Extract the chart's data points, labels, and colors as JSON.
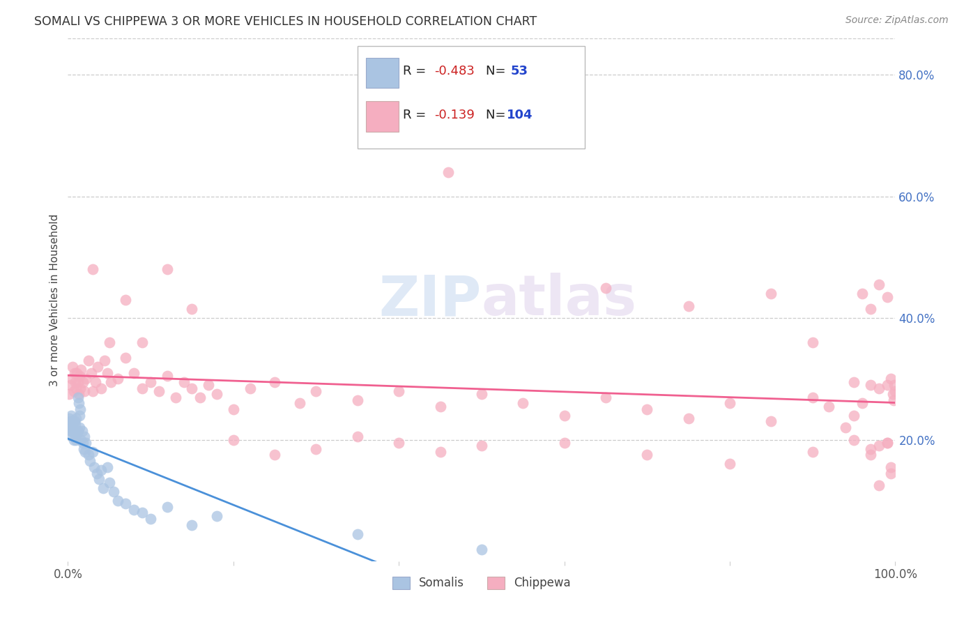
{
  "title": "SOMALI VS CHIPPEWA 3 OR MORE VEHICLES IN HOUSEHOLD CORRELATION CHART",
  "source": "Source: ZipAtlas.com",
  "ylabel": "3 or more Vehicles in Household",
  "right_ytick_labels": [
    "20.0%",
    "40.0%",
    "60.0%",
    "80.0%"
  ],
  "right_ytick_values": [
    0.2,
    0.4,
    0.6,
    0.8
  ],
  "xlim": [
    0.0,
    1.0
  ],
  "ylim": [
    0.0,
    0.86
  ],
  "legend_r1": "R = -0.483",
  "legend_n1": "53",
  "legend_r2": "R = -0.139",
  "legend_n2": "104",
  "somali_color": "#aac4e2",
  "chippewa_color": "#f5aec0",
  "somali_line_color": "#4a90d9",
  "chippewa_line_color": "#f06090",
  "legend_label1": "Somalis",
  "legend_label2": "Chippewa",
  "watermark": "ZIPatlas",
  "somali_x": [
    0.001,
    0.002,
    0.003,
    0.003,
    0.004,
    0.004,
    0.005,
    0.005,
    0.006,
    0.006,
    0.007,
    0.007,
    0.008,
    0.008,
    0.009,
    0.009,
    0.01,
    0.01,
    0.011,
    0.012,
    0.012,
    0.013,
    0.014,
    0.014,
    0.015,
    0.016,
    0.017,
    0.018,
    0.019,
    0.02,
    0.021,
    0.022,
    0.025,
    0.027,
    0.03,
    0.032,
    0.035,
    0.038,
    0.04,
    0.043,
    0.048,
    0.05,
    0.055,
    0.06,
    0.07,
    0.08,
    0.09,
    0.1,
    0.12,
    0.15,
    0.18,
    0.35,
    0.5
  ],
  "somali_y": [
    0.235,
    0.22,
    0.215,
    0.23,
    0.21,
    0.24,
    0.225,
    0.215,
    0.22,
    0.23,
    0.215,
    0.2,
    0.23,
    0.215,
    0.225,
    0.21,
    0.235,
    0.2,
    0.21,
    0.215,
    0.27,
    0.26,
    0.24,
    0.22,
    0.25,
    0.2,
    0.215,
    0.195,
    0.185,
    0.205,
    0.18,
    0.195,
    0.175,
    0.165,
    0.18,
    0.155,
    0.145,
    0.135,
    0.15,
    0.12,
    0.155,
    0.13,
    0.115,
    0.1,
    0.095,
    0.085,
    0.08,
    0.07,
    0.09,
    0.06,
    0.075,
    0.045,
    0.02
  ],
  "chippewa_x": [
    0.001,
    0.003,
    0.005,
    0.006,
    0.007,
    0.008,
    0.009,
    0.01,
    0.011,
    0.012,
    0.013,
    0.014,
    0.015,
    0.016,
    0.018,
    0.02,
    0.022,
    0.025,
    0.028,
    0.03,
    0.033,
    0.036,
    0.04,
    0.044,
    0.048,
    0.052,
    0.06,
    0.07,
    0.08,
    0.09,
    0.1,
    0.11,
    0.12,
    0.13,
    0.14,
    0.15,
    0.16,
    0.17,
    0.18,
    0.2,
    0.22,
    0.25,
    0.28,
    0.3,
    0.35,
    0.4,
    0.45,
    0.5,
    0.55,
    0.6,
    0.65,
    0.7,
    0.75,
    0.8,
    0.85,
    0.9,
    0.92,
    0.94,
    0.95,
    0.96,
    0.97,
    0.98,
    0.99,
    0.995,
    0.997,
    0.998,
    0.999,
    1.0,
    0.03,
    0.05,
    0.07,
    0.09,
    0.12,
    0.15,
    0.2,
    0.25,
    0.3,
    0.35,
    0.4,
    0.45,
    0.5,
    0.6,
    0.7,
    0.8,
    0.9,
    0.95,
    0.97,
    0.98,
    0.99,
    0.995,
    0.46,
    0.65,
    0.75,
    0.85,
    0.9,
    0.95,
    0.96,
    0.97,
    0.98,
    0.99,
    0.97,
    0.98,
    0.99,
    0.995
  ],
  "chippewa_y": [
    0.275,
    0.29,
    0.3,
    0.32,
    0.28,
    0.31,
    0.295,
    0.285,
    0.31,
    0.295,
    0.275,
    0.305,
    0.285,
    0.315,
    0.295,
    0.28,
    0.3,
    0.33,
    0.31,
    0.28,
    0.295,
    0.32,
    0.285,
    0.33,
    0.31,
    0.295,
    0.3,
    0.335,
    0.31,
    0.285,
    0.295,
    0.28,
    0.305,
    0.27,
    0.295,
    0.285,
    0.27,
    0.29,
    0.275,
    0.25,
    0.285,
    0.295,
    0.26,
    0.28,
    0.265,
    0.28,
    0.255,
    0.275,
    0.26,
    0.24,
    0.27,
    0.25,
    0.235,
    0.26,
    0.23,
    0.27,
    0.255,
    0.22,
    0.24,
    0.26,
    0.29,
    0.285,
    0.29,
    0.3,
    0.275,
    0.265,
    0.29,
    0.28,
    0.48,
    0.36,
    0.43,
    0.36,
    0.48,
    0.415,
    0.2,
    0.175,
    0.185,
    0.205,
    0.195,
    0.18,
    0.19,
    0.195,
    0.175,
    0.16,
    0.18,
    0.2,
    0.175,
    0.19,
    0.195,
    0.155,
    0.64,
    0.45,
    0.42,
    0.44,
    0.36,
    0.295,
    0.44,
    0.415,
    0.455,
    0.435,
    0.185,
    0.125,
    0.195,
    0.145
  ]
}
